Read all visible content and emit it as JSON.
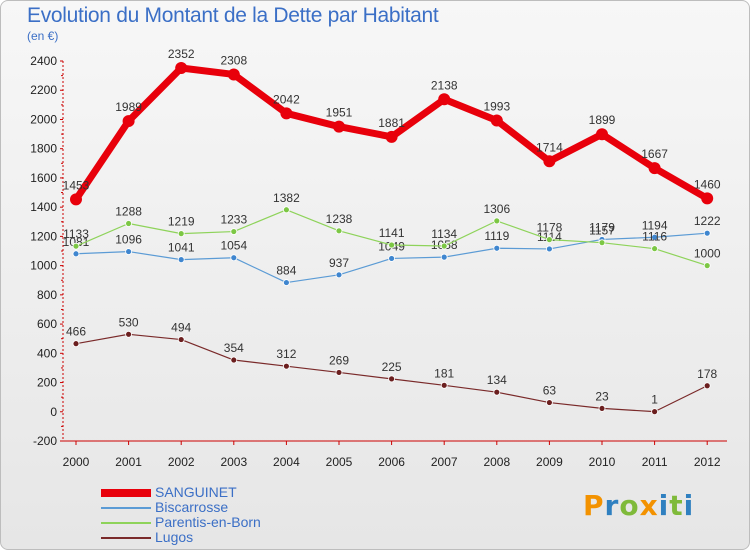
{
  "header": {
    "title": "Evolution du Montant de la Dette par Habitant",
    "subtitle": "(en €)"
  },
  "brand": {
    "letters": [
      "P",
      "r",
      "o",
      "x",
      "i",
      "t",
      "i"
    ],
    "colors": [
      "#f39200",
      "#2f80c0",
      "#7fba3a",
      "#f39200",
      "#2f80c0",
      "#7fba3a",
      "#2f80c0"
    ]
  },
  "chart_data": {
    "type": "line",
    "title": "Evolution du Montant de la Dette par Habitant",
    "subtitle": "(en €)",
    "xlabel": "",
    "ylabel": "",
    "x": [
      "2000",
      "2001",
      "2002",
      "2003",
      "2004",
      "2005",
      "2006",
      "2007",
      "2008",
      "2009",
      "2010",
      "2011",
      "2012"
    ],
    "ylim": [
      -200,
      2400
    ],
    "yticks": [
      -200,
      0,
      200,
      400,
      600,
      800,
      1000,
      1200,
      1400,
      1600,
      1800,
      2000,
      2200,
      2400
    ],
    "grid": false,
    "legend_position": "bottom-left",
    "series": [
      {
        "name": "SANGUINET",
        "color": "#e8000b",
        "values": [
          1453,
          1989,
          2352,
          2308,
          2042,
          1951,
          1881,
          2138,
          1993,
          1714,
          1899,
          1667,
          1460
        ]
      },
      {
        "name": "Biscarrosse",
        "color": "#5b9bd5",
        "values": [
          1081,
          1096,
          1041,
          1054,
          884,
          937,
          1049,
          1058,
          1119,
          1114,
          1179,
          1194,
          1222
        ]
      },
      {
        "name": "Parentis-en-Born",
        "color": "#8ed35a",
        "values": [
          1133,
          1288,
          1219,
          1233,
          1382,
          1238,
          1141,
          1134,
          1306,
          1178,
          1157,
          1116,
          1000
        ]
      },
      {
        "name": "Lugos",
        "color": "#7a2a2a",
        "values": [
          466,
          530,
          494,
          354,
          312,
          269,
          225,
          181,
          134,
          63,
          23,
          1,
          178
        ]
      }
    ]
  }
}
